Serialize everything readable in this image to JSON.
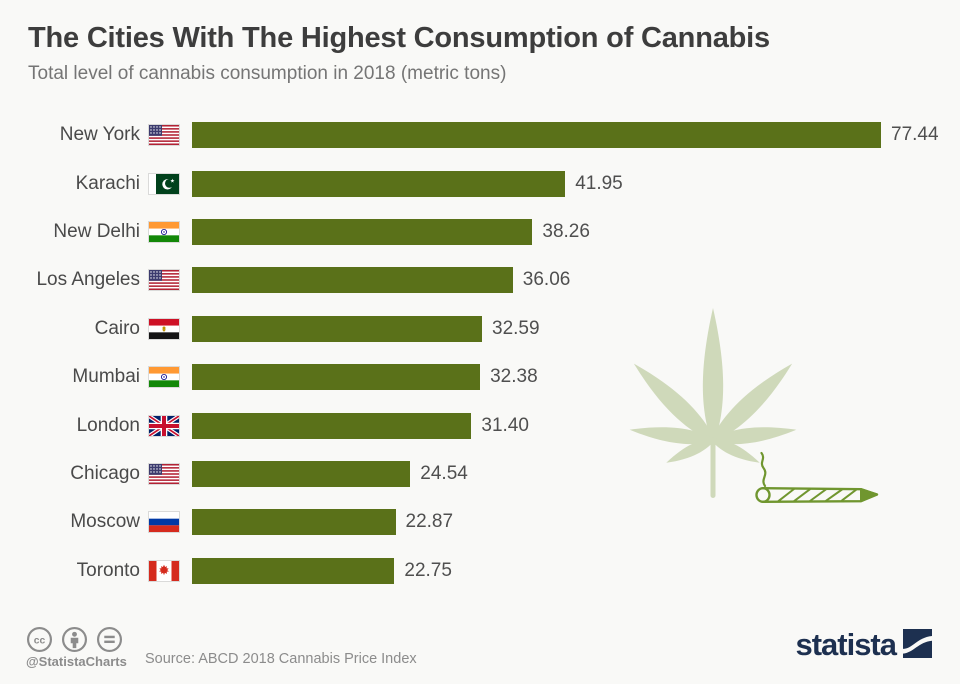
{
  "header": {
    "title": "The Cities With The Highest Consumption of Cannabis",
    "subtitle": "Total level of cannabis consumption in 2018 (metric tons)"
  },
  "chart_data": {
    "type": "bar",
    "orientation": "horizontal",
    "title": "The Cities With The Highest Consumption of Cannabis",
    "subtitle": "Total level of cannabis consumption in 2018 (metric tons)",
    "categories": [
      "New York",
      "Karachi",
      "New Delhi",
      "Los Angeles",
      "Cairo",
      "Mumbai",
      "London",
      "Chicago",
      "Moscow",
      "Toronto"
    ],
    "values": [
      77.44,
      41.95,
      38.26,
      36.06,
      32.59,
      32.38,
      31.4,
      24.54,
      22.87,
      22.75
    ],
    "value_labels": [
      "77.44",
      "41.95",
      "38.26",
      "36.06",
      "32.59",
      "32.38",
      "31.40",
      "24.54",
      "22.87",
      "22.75"
    ],
    "flags": [
      "us",
      "pk",
      "in",
      "us",
      "eg",
      "in",
      "gb",
      "us",
      "ru",
      "ca"
    ],
    "flag_countries": [
      "United States",
      "Pakistan",
      "India",
      "United States",
      "Egypt",
      "India",
      "United Kingdom",
      "United States",
      "Russia",
      "Canada"
    ],
    "xlim": [
      0,
      77.44
    ],
    "unit": "metric tons",
    "year": "2018",
    "grid": false,
    "legend": false,
    "bar_color": "#5a7119"
  },
  "watermark": {
    "leaf_icon": "cannabis-leaf-icon",
    "joint_icon": "cannabis-joint-icon"
  },
  "footer": {
    "license_icons": [
      "cc-icon",
      "attribution-person-icon",
      "no-derivatives-equals-icon"
    ],
    "handle": "@StatistaCharts",
    "source": "Source: ABCD 2018 Cannabis Price Index",
    "brand": "statista"
  },
  "colors": {
    "background": "#f9f9f7",
    "bar": "#5a7119",
    "title_text": "#3d3d3d",
    "subtitle_text": "#757575",
    "footer_gray": "#8c8c8c",
    "brand_navy": "#1d3050",
    "watermark_green": "#cfd9ba",
    "joint_outline_green": "#70962f"
  }
}
